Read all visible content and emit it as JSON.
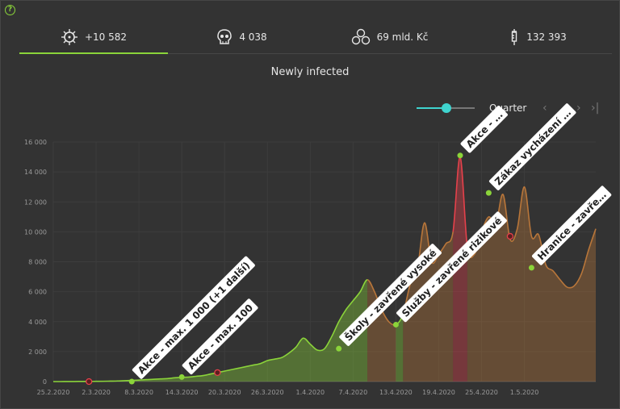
{
  "tabs": [
    {
      "label": "+10 582",
      "icon": "virus-icon"
    },
    {
      "label": "4 038",
      "icon": "skull-icon"
    },
    {
      "label": "69 mld. Kč",
      "icon": "coins-icon"
    },
    {
      "label": "132 393",
      "icon": "syringe-icon"
    }
  ],
  "title": "Newly infected",
  "controls": {
    "zoom_label": "Quarter",
    "prev": "‹",
    "next": "›",
    "last": "›|"
  },
  "colors": {
    "green": "#8bd43a",
    "brown": "#b8763a",
    "red": "#e5414b",
    "accent": "#3fd4cf"
  },
  "chart_data": {
    "type": "area",
    "ylim": [
      0,
      16000
    ],
    "yticks": [
      "0",
      "2 000",
      "4 000",
      "6 000",
      "8 000",
      "10 000",
      "12 000",
      "14 000",
      "16 000"
    ],
    "yticks_values": [
      0,
      2000,
      4000,
      6000,
      8000,
      10000,
      12000,
      14000,
      16000
    ],
    "xticks": [
      "25.2.2020",
      "2.3.2020",
      "8.3.2020",
      "14.3.2020",
      "20.3.2020",
      "26.3.2020",
      "1.4.2020",
      "7.4.2020",
      "13.4.2020",
      "19.4.2020",
      "25.4.2020",
      "1.5.2020"
    ],
    "series": [
      {
        "values": [
          0,
          0,
          5,
          5,
          10,
          10,
          15,
          20,
          30,
          40,
          60,
          80,
          100,
          130,
          150,
          180,
          200,
          250,
          280,
          300,
          350,
          400,
          500,
          600,
          700,
          800,
          900,
          1000,
          1100,
          1200,
          1400,
          1500,
          1600,
          1900,
          2300,
          2900,
          2500,
          2100,
          2200,
          3000,
          4000,
          4800,
          5400,
          6000,
          6800,
          6000,
          4800,
          4000,
          3800,
          4500,
          6500,
          7500,
          10600,
          8000,
          8500,
          9200,
          10000,
          15000,
          9000,
          8500,
          10000,
          11000,
          10500,
          12500,
          9500,
          10200,
          13000,
          9700,
          9800,
          7800,
          7400,
          6800,
          6300,
          6400,
          7200,
          8800,
          10200
        ]
      }
    ],
    "annotations": [
      {
        "label": "Akce - max. 1 000 (+1 další)",
        "day": 11,
        "value": 0,
        "type": "start"
      },
      {
        "label": "Akce - max. 100",
        "day": 18,
        "value": 300,
        "type": "start"
      },
      {
        "label": "Školy - zavřené vysoké",
        "day": 40,
        "value": 2200,
        "type": "start"
      },
      {
        "label": "Služby - zavřené rizikové",
        "day": 48,
        "value": 3800,
        "type": "start"
      },
      {
        "label": "Akce - …",
        "day": 57,
        "value": 15100,
        "type": "start"
      },
      {
        "label": "Zákaz vycházení …",
        "day": 61,
        "value": 12600,
        "type": "start"
      },
      {
        "label": "Hranice - zavře…",
        "day": 67,
        "value": 7600,
        "type": "start"
      }
    ],
    "end_markers": [
      {
        "day": 5,
        "value": 0
      },
      {
        "day": 23,
        "value": 600
      },
      {
        "day": 64,
        "value": 9700
      }
    ]
  }
}
